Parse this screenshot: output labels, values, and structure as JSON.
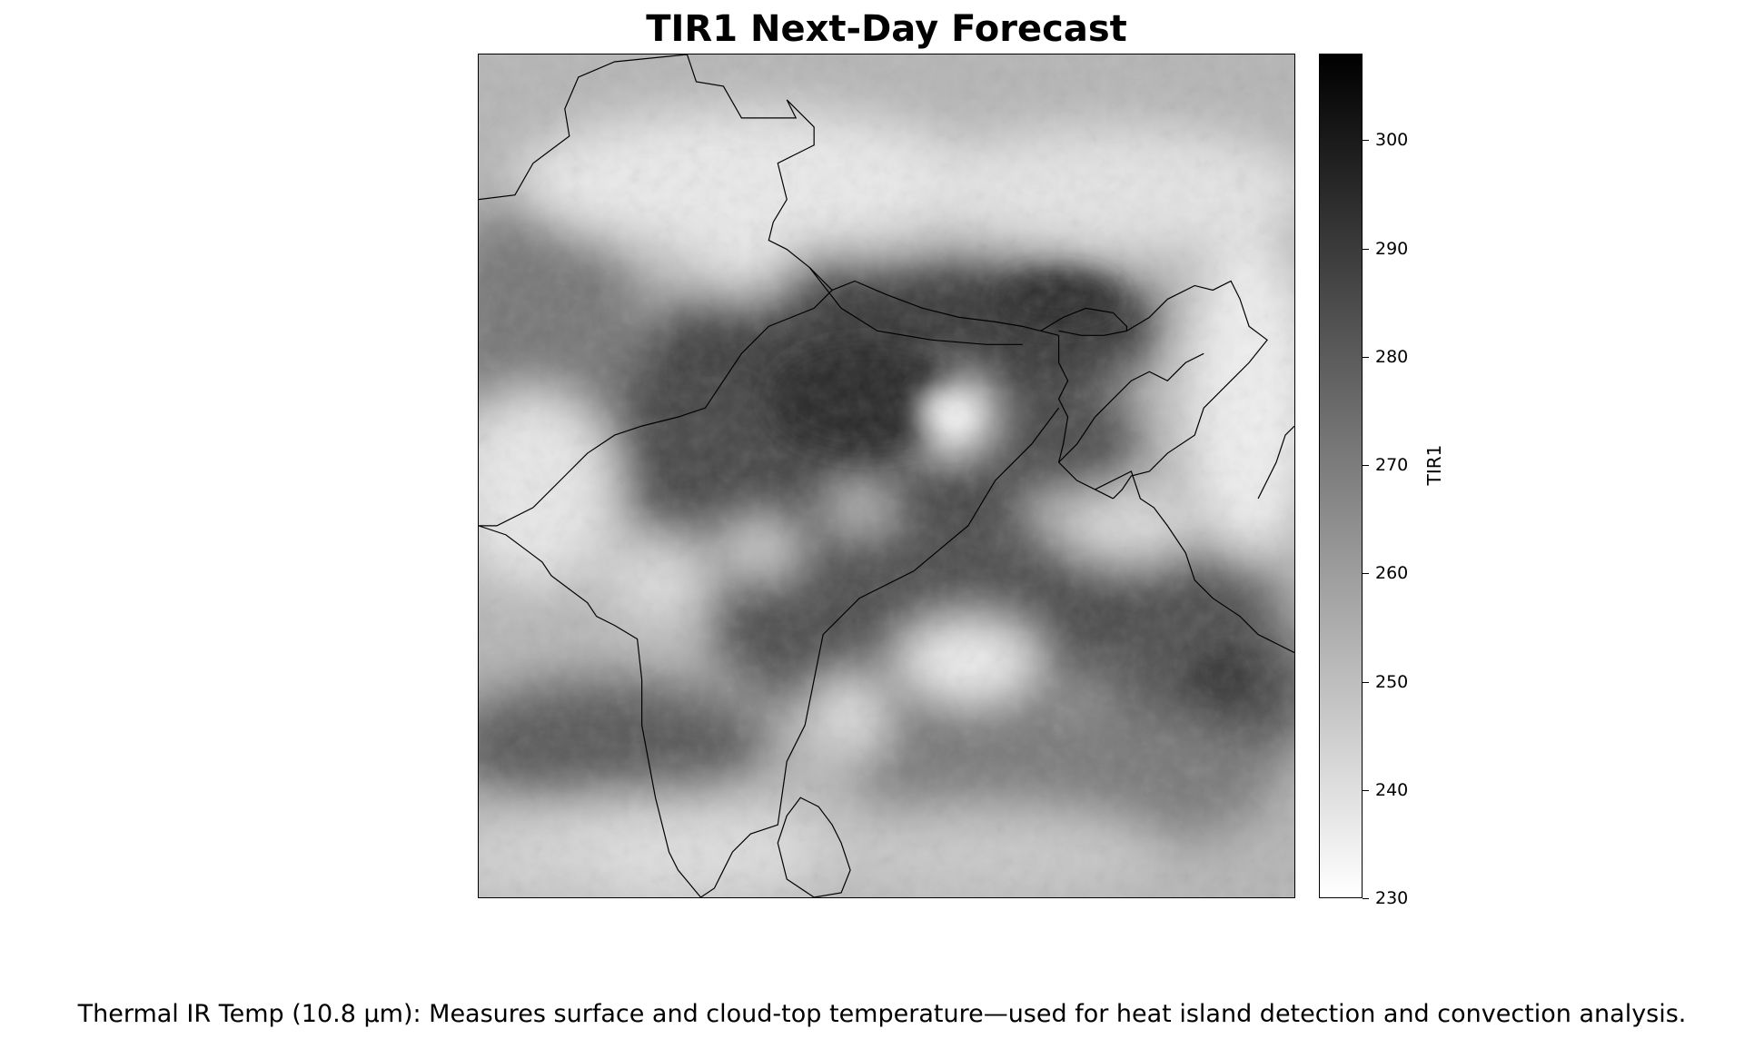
{
  "title": "TIR1 Next-Day Forecast",
  "caption": "Thermal IR Temp (10.8 µm): Measures surface and cloud-top temperature—used for heat island detection and convection analysis.",
  "map": {
    "variable": "TIR1",
    "colormap": "greys",
    "color_min": "#ffffff",
    "color_max": "#000000",
    "boundary_color": "#000000"
  },
  "colorbar": {
    "label": "TIR1",
    "range": [
      230,
      308
    ],
    "ticks": [
      230,
      240,
      250,
      260,
      270,
      280,
      290,
      300
    ],
    "tick_labels": [
      "230",
      "240",
      "250",
      "260",
      "270",
      "280",
      "290",
      "300"
    ]
  }
}
